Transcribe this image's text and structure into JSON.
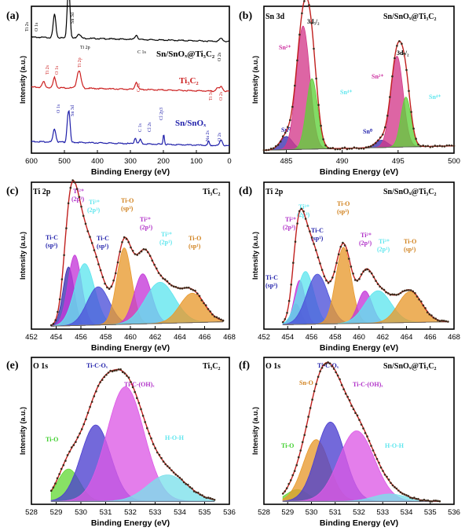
{
  "figure": {
    "xlabel": "Binding Energy (eV)",
    "ylabel": "Intensity (a.u.)"
  },
  "chart_data": [
    {
      "id": "a",
      "type": "line",
      "panel_label": "(a)",
      "xlim": [
        600,
        0
      ],
      "xticks": [
        600,
        500,
        400,
        300,
        200,
        100,
        0
      ],
      "series": [
        {
          "name": "Sn/SnOₓ@Ti₃C₂",
          "color": "#000000",
          "offset": 0.76,
          "peaks": [
            [
              530,
              0.16,
              4
            ],
            [
              490,
              0.22,
              3
            ],
            [
              485,
              0.25,
              3
            ],
            [
              456,
              0.03,
              5
            ],
            [
              282,
              0.03,
              4
            ],
            [
              25,
              0.02,
              5
            ]
          ]
        },
        {
          "name": "Ti₃C₂",
          "color": "#cc1f1f",
          "offset": 0.42,
          "peaks": [
            [
              563,
              0.04,
              4
            ],
            [
              530,
              0.07,
              4
            ],
            [
              456,
              0.12,
              6
            ],
            [
              282,
              0.05,
              4
            ],
            [
              37,
              0.02,
              4
            ],
            [
              25,
              0.03,
              5
            ]
          ]
        },
        {
          "name": "Sn/SnOₓ",
          "color": "#1f1faa",
          "offset": 0.05,
          "peaks": [
            [
              530,
              0.09,
              4
            ],
            [
              490,
              0.14,
              3
            ],
            [
              485,
              0.16,
              3
            ],
            [
              285,
              0.04,
              3
            ],
            [
              270,
              0.03,
              3
            ],
            [
              199,
              0.07,
              2
            ],
            [
              63,
              0.03,
              2
            ],
            [
              25,
              0.04,
              4
            ]
          ]
        }
      ],
      "peak_labels": [
        "Ti 2s",
        "O 1s",
        "Sn 3d",
        "Ti 2p",
        "C 1s",
        "O 2s",
        "Ti 2s",
        "O 1s",
        "Ti 2p",
        "C 1s",
        "Ti 3s",
        "O 2s",
        "O 1s",
        "Sn 3d",
        "C 1s",
        "Cl 2s",
        "Cl 2p3",
        "Na 2s",
        "O 2s"
      ],
      "legend": [
        "Sn/SnOₓ@Ti₃C₂",
        "Ti₃C₂",
        "Sn/SnOₓ"
      ]
    },
    {
      "id": "b",
      "type": "area",
      "panel_label": "(b)",
      "title": "Sn 3d",
      "sample": "Sn/SnOₓ@Ti₃C₂",
      "xlim": [
        483,
        500
      ],
      "xticks": [
        485,
        490,
        495,
        500
      ],
      "components": [
        {
          "name": "Sn⁰",
          "center": 485.0,
          "height": 0.09,
          "width": 0.55,
          "color": "#3a2fb0"
        },
        {
          "name": "Sn²⁺",
          "center": 486.5,
          "height": 0.84,
          "width": 0.6,
          "color": "#d43a8a"
        },
        {
          "name": "Sn⁴⁺",
          "center": 487.3,
          "height": 0.48,
          "width": 0.5,
          "color": "#5fd13a"
        },
        {
          "name": "Sn⁰",
          "center": 493.5,
          "height": 0.05,
          "width": 0.55,
          "color": "#3a2fb0"
        },
        {
          "name": "Sn²⁺",
          "center": 494.9,
          "height": 0.62,
          "width": 0.55,
          "color": "#d43a8a"
        },
        {
          "name": "Sn⁴⁺",
          "center": 495.7,
          "height": 0.34,
          "width": 0.45,
          "color": "#5fd13a"
        }
      ],
      "background": [
        [
          483,
          0.02
        ],
        [
          500,
          0.05
        ]
      ],
      "labels": [
        "3d₅/₂",
        "3d₃/₂",
        "Sn²⁺",
        "Sn⁴⁺",
        "Sn⁰",
        "Sn²⁺",
        "Sn⁴⁺",
        "Sn⁰"
      ]
    },
    {
      "id": "c",
      "type": "area",
      "panel_label": "(c)",
      "title": "Ti 2p",
      "sample": "Ti₃C₂",
      "xlim": [
        452,
        468
      ],
      "xticks": [
        452,
        454,
        456,
        458,
        460,
        462,
        464,
        466,
        468
      ],
      "components": [
        {
          "name": "Ti-C (sp³)",
          "center": 455.0,
          "height": 0.4,
          "width": 0.45,
          "color": "#3a2fb0"
        },
        {
          "name": "Ti²⁺ (2p³)",
          "center": 455.5,
          "height": 0.48,
          "width": 0.55,
          "color": "#c437d9"
        },
        {
          "name": "Ti³⁺ (2p³)",
          "center": 456.3,
          "height": 0.42,
          "width": 0.8,
          "color": "#5fe6ee"
        },
        {
          "name": "Ti-C (sp¹)",
          "center": 457.4,
          "height": 0.26,
          "width": 0.9,
          "color": "#4b4fd8"
        },
        {
          "name": "Ti-O (sp³)",
          "center": 459.5,
          "height": 0.52,
          "width": 0.6,
          "color": "#e89a2e"
        },
        {
          "name": "Ti²⁺ (2p¹)",
          "center": 461.0,
          "height": 0.34,
          "width": 0.7,
          "color": "#c437d9"
        },
        {
          "name": "Ti³⁺ (2p¹)",
          "center": 462.4,
          "height": 0.28,
          "width": 1.2,
          "color": "#5fe6ee"
        },
        {
          "name": "Ti-O (sp¹)",
          "center": 465.0,
          "height": 0.2,
          "width": 1.0,
          "color": "#e89a2e"
        }
      ],
      "background": [
        [
          453.6,
          0.02
        ],
        [
          467.5,
          0.05
        ]
      ],
      "labels": [
        "Ti-C",
        "(sp³)",
        "Ti²⁺",
        "(2p³)",
        "Ti³⁺",
        "(2p³)",
        "Ti-C",
        "(sp¹)",
        "Ti-O",
        "(sp³)",
        "Ti²⁺",
        "(2p¹)",
        "Ti³⁺",
        "(2p¹)",
        "Ti-O",
        "(sp¹)"
      ]
    },
    {
      "id": "d",
      "type": "area",
      "panel_label": "(d)",
      "title": "Ti 2p",
      "sample": "Sn/SnOₓ@Ti₃C₂",
      "xlim": [
        452,
        468
      ],
      "xticks": [
        452,
        454,
        456,
        458,
        460,
        462,
        464,
        466,
        468
      ],
      "components": [
        {
          "name": "Ti-C (sp³)",
          "center": 454.7,
          "height": 0.14,
          "width": 0.4,
          "color": "#3a2fb0"
        },
        {
          "name": "Ti²⁺ (2p³)",
          "center": 455.0,
          "height": 0.3,
          "width": 0.45,
          "color": "#c437d9"
        },
        {
          "name": "Ti³⁺ (2p³)",
          "center": 455.5,
          "height": 0.36,
          "width": 0.7,
          "color": "#5fe6ee"
        },
        {
          "name": "Ti-C (sp¹)",
          "center": 456.5,
          "height": 0.34,
          "width": 0.9,
          "color": "#4b4fd8"
        },
        {
          "name": "Ti-O (sp³)",
          "center": 458.7,
          "height": 0.52,
          "width": 0.65,
          "color": "#e89a2e"
        },
        {
          "name": "Ti²⁺ (2p¹)",
          "center": 460.5,
          "height": 0.22,
          "width": 0.6,
          "color": "#c437d9"
        },
        {
          "name": "Ti³⁺ (2p¹)",
          "center": 461.6,
          "height": 0.22,
          "width": 1.1,
          "color": "#5fe6ee"
        },
        {
          "name": "Ti-O (sp¹)",
          "center": 464.3,
          "height": 0.21,
          "width": 1.0,
          "color": "#e89a2e"
        }
      ],
      "background": [
        [
          453.6,
          0.03
        ],
        [
          467.5,
          0.05
        ]
      ],
      "labels": [
        "Ti-C",
        "(sp³)",
        "Ti²⁺",
        "(2p³)",
        "Ti³⁺",
        "(2p³)",
        "Ti-C",
        "(sp¹)",
        "Ti-O",
        "(sp³)",
        "Ti²⁺",
        "(2p¹)",
        "Ti³⁺",
        "(2p¹)",
        "Ti-O",
        "(sp¹)"
      ]
    },
    {
      "id": "e",
      "type": "area",
      "panel_label": "(e)",
      "title": "O 1s",
      "sample": "Ti₃C₂",
      "xlim": [
        528,
        536
      ],
      "xticks": [
        528,
        529,
        530,
        531,
        532,
        533,
        534,
        535,
        536
      ],
      "components": [
        {
          "name": "Ti-O",
          "center": 529.5,
          "height": 0.22,
          "width": 0.45,
          "color": "#66d93a"
        },
        {
          "name": "Ti-C-Oₓ",
          "center": 530.6,
          "height": 0.52,
          "width": 0.6,
          "color": "#4b3fd0"
        },
        {
          "name": "Ti-C-(OH)ₓ",
          "center": 531.8,
          "height": 0.78,
          "width": 0.75,
          "color": "#dd5ae6"
        },
        {
          "name": "H-O-H",
          "center": 533.5,
          "height": 0.18,
          "width": 0.8,
          "color": "#7be0ea"
        }
      ],
      "background": [
        [
          528.8,
          0.02
        ],
        [
          535.4,
          0.02
        ]
      ],
      "labels": [
        "Ti-C-Oₓ",
        "Ti-C-(OH)ₓ",
        "Ti-O",
        "H-O-H"
      ]
    },
    {
      "id": "f",
      "type": "area",
      "panel_label": "(f)",
      "title": "O 1s",
      "sample": "Sn/SnOₓ@Ti₃C₂",
      "xlim": [
        528,
        536
      ],
      "xticks": [
        528,
        529,
        530,
        531,
        532,
        533,
        534,
        535,
        536
      ],
      "components": [
        {
          "name": "Ti-O",
          "center": 529.4,
          "height": 0.08,
          "width": 0.45,
          "color": "#66d93a"
        },
        {
          "name": "Sn-O",
          "center": 530.2,
          "height": 0.42,
          "width": 0.55,
          "color": "#e89a2e"
        },
        {
          "name": "Ti-C-Oₓ",
          "center": 530.8,
          "height": 0.54,
          "width": 0.6,
          "color": "#4b3fd0"
        },
        {
          "name": "Ti-C-(OH)ₓ",
          "center": 531.9,
          "height": 0.48,
          "width": 0.75,
          "color": "#dd5ae6"
        },
        {
          "name": "H-O-H",
          "center": 533.3,
          "height": 0.05,
          "width": 0.7,
          "color": "#7be0ea"
        }
      ],
      "background": [
        [
          528.8,
          0.02
        ],
        [
          535.4,
          0.02
        ]
      ],
      "labels": [
        "Ti-C-Oₓ",
        "Sn-O",
        "Ti-C-(OH)ₓ",
        "Ti-O",
        "H-O-H"
      ]
    }
  ]
}
